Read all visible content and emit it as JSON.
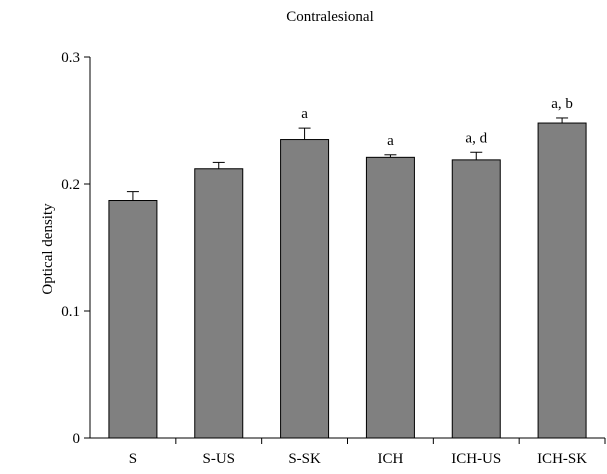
{
  "chart_data": {
    "type": "bar",
    "title": "Contralesional",
    "xlabel": "",
    "ylabel": "Optical density",
    "ylim": [
      0,
      0.3
    ],
    "yticks": [
      0,
      0.1,
      0.2,
      0.3
    ],
    "ytick_labels": [
      "0",
      "0.1",
      "0.2",
      "0.3"
    ],
    "categories": [
      "S",
      "S-US",
      "S-SK",
      "ICH",
      "ICH-US",
      "ICH-SK"
    ],
    "values": [
      0.187,
      0.212,
      0.235,
      0.221,
      0.219,
      0.248
    ],
    "errors": [
      0.007,
      0.005,
      0.009,
      0.002,
      0.006,
      0.004
    ],
    "annotations": [
      "",
      "",
      "a",
      "a",
      "a, d",
      "a, b"
    ],
    "bar_color": "#808080",
    "grid": false,
    "legend": "none"
  }
}
